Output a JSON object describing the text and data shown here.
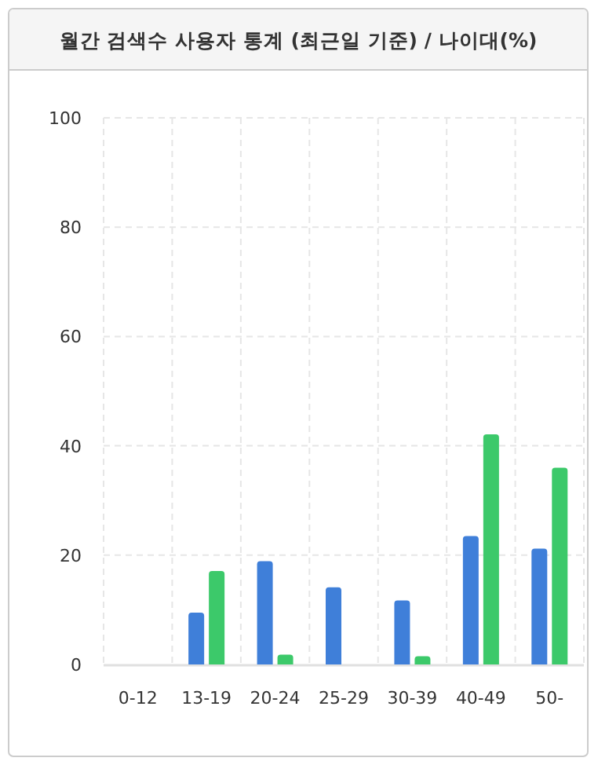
{
  "chart_data": {
    "type": "bar",
    "title": "월간 검색수 사용자 통계 (최근일 기준) / 나이대(%)",
    "categories": [
      "0-12",
      "13-19",
      "20-24",
      "25-29",
      "30-39",
      "40-49",
      "50-"
    ],
    "series": [
      {
        "color": "#3f7fd9",
        "values": [
          0,
          9.5,
          18.9,
          14.1,
          11.7,
          23.5,
          21.2
        ]
      },
      {
        "color": "#3cc96a",
        "values": [
          0,
          17.1,
          1.8,
          0,
          1.5,
          42.1,
          36.0
        ]
      }
    ],
    "ylim": [
      0,
      100
    ],
    "yticks": [
      0,
      20,
      40,
      60,
      80,
      100
    ],
    "grid": true
  }
}
